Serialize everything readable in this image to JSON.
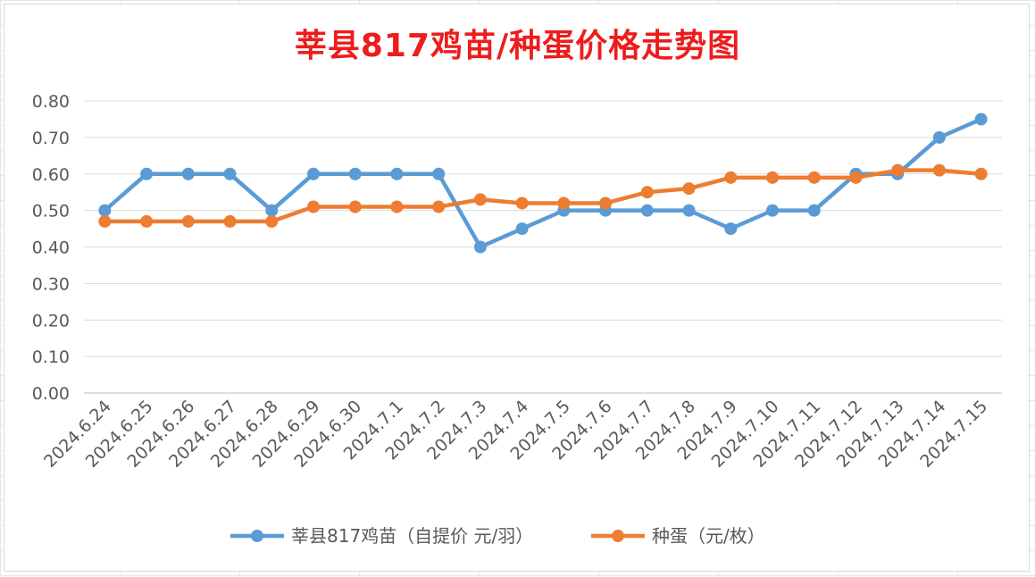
{
  "chart_data": {
    "type": "line",
    "title": "莘县817鸡苗/种蛋价格走势图",
    "xlabel": "",
    "ylabel": "",
    "categories": [
      "2024.6.24",
      "2024.6.25",
      "2024.6.26",
      "2024.6.27",
      "2024.6.28",
      "2024.6.29",
      "2024.6.30",
      "2024.7.1",
      "2024.7.2",
      "2024.7.3",
      "2024.7.4",
      "2024.7.5",
      "2024.7.6",
      "2024.7.7",
      "2024.7.8",
      "2024.7.9",
      "2024.7.10",
      "2024.7.11",
      "2024.7.12",
      "2024.7.13",
      "2024.7.14",
      "2024.7.15"
    ],
    "ylim": [
      0,
      0.8
    ],
    "yticks": [
      "0.00",
      "0.10",
      "0.20",
      "0.30",
      "0.40",
      "0.50",
      "0.60",
      "0.70",
      "0.80"
    ],
    "grid": true,
    "legend": "bottom",
    "series": [
      {
        "name": "莘县817鸡苗（自提价 元/羽）",
        "color": "#5b9bd5",
        "values": [
          0.5,
          0.6,
          0.6,
          0.6,
          0.5,
          0.6,
          0.6,
          0.6,
          0.6,
          0.4,
          0.45,
          0.5,
          0.5,
          0.5,
          0.5,
          0.45,
          0.5,
          0.5,
          0.6,
          0.6,
          0.7,
          0.75
        ]
      },
      {
        "name": "种蛋（元/枚）",
        "color": "#ed7d31",
        "values": [
          0.47,
          0.47,
          0.47,
          0.47,
          0.47,
          0.51,
          0.51,
          0.51,
          0.51,
          0.53,
          0.52,
          0.52,
          0.52,
          0.55,
          0.56,
          0.59,
          0.59,
          0.59,
          0.59,
          0.61,
          0.61,
          0.6
        ]
      }
    ]
  }
}
